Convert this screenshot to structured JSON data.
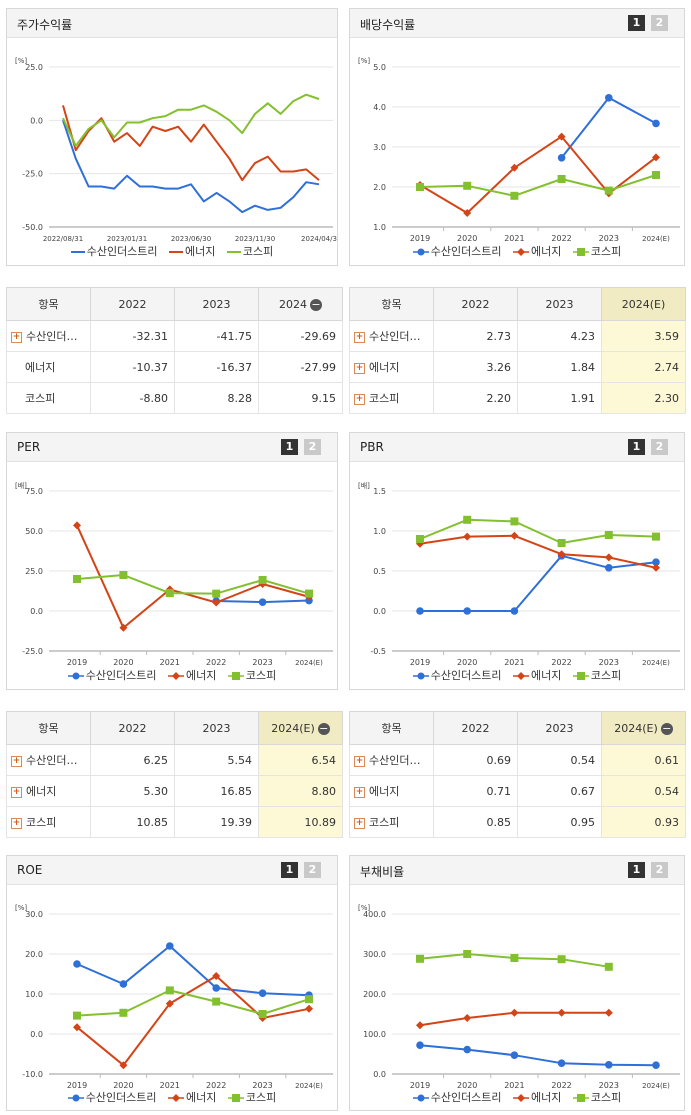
{
  "legend_names": [
    "수산인더스트리",
    "에너지",
    "코스피"
  ],
  "colors": {
    "s1": "#2f6fd8",
    "s2": "#d44417",
    "s3": "#83c02f"
  },
  "charts": [
    {
      "id": "stock",
      "title": "주가수익률",
      "unit": "[%]",
      "paging": [],
      "ticks": [
        "25.0",
        "0.0",
        "-25.0",
        "-50.0"
      ],
      "ymin": -50,
      "ymax": 25,
      "xlabels": [
        "2022/08/31",
        "2023/01/31",
        "2023/06/30",
        "2023/11/30",
        "2024/04/3"
      ],
      "x_count": 21,
      "x_at": [
        0,
        5,
        10,
        15,
        20
      ],
      "marker": "none",
      "series": [
        [
          0,
          -18,
          -31,
          -31,
          -32,
          -26,
          -31,
          -31,
          -32,
          -32,
          -30,
          -38,
          -34,
          -38,
          -43,
          -40,
          -42,
          -41,
          -36,
          -29,
          -30
        ],
        [
          7,
          -14,
          -5,
          1,
          -10,
          -6,
          -12,
          -3,
          -5,
          -3,
          -10,
          -2,
          -10,
          -18,
          -28,
          -20,
          -17,
          -24,
          -24,
          -23,
          -28
        ],
        [
          1,
          -12,
          -4,
          0,
          -8,
          -1,
          -1,
          1,
          2,
          5,
          5,
          7,
          4,
          0,
          -6,
          3,
          8,
          3,
          9,
          12,
          10
        ]
      ]
    },
    {
      "id": "dividend",
      "title": "배당수익률",
      "unit": "[%]",
      "paging": [
        "1",
        "2"
      ],
      "ticks": [
        "5.0",
        "4.0",
        "3.0",
        "2.0",
        "1.0"
      ],
      "ymin": 1,
      "ymax": 5,
      "xlabels": [
        "2019",
        "2020",
        "2021",
        "2022",
        "2023",
        "2024(E)"
      ],
      "x_count": 6,
      "x_at": [
        0,
        1,
        2,
        3,
        4,
        5
      ],
      "marker": "mixed",
      "series": [
        [
          null,
          null,
          null,
          2.73,
          4.23,
          3.59
        ],
        [
          2.05,
          1.35,
          2.48,
          3.26,
          1.84,
          2.74
        ],
        [
          2.0,
          2.03,
          1.78,
          2.2,
          1.91,
          2.3
        ]
      ]
    },
    {
      "id": "per",
      "title": "PER",
      "unit": "[배]",
      "paging": [
        "1",
        "2"
      ],
      "ticks": [
        "75.0",
        "50.0",
        "25.0",
        "0.0",
        "-25.0"
      ],
      "ymin": -25,
      "ymax": 75,
      "xlabels": [
        "2019",
        "2020",
        "2021",
        "2022",
        "2023",
        "2024(E)"
      ],
      "x_count": 6,
      "x_at": [
        0,
        1,
        2,
        3,
        4,
        5
      ],
      "marker": "mixed",
      "series": [
        [
          null,
          null,
          null,
          6.25,
          5.54,
          6.54
        ],
        [
          53.5,
          -10.5,
          13.5,
          5.3,
          16.85,
          8.8
        ],
        [
          20.0,
          22.5,
          11.2,
          10.85,
          19.39,
          10.89
        ]
      ]
    },
    {
      "id": "pbr",
      "title": "PBR",
      "unit": "[배]",
      "paging": [
        "1",
        "2"
      ],
      "ticks": [
        "1.5",
        "1.0",
        "0.5",
        "0.0",
        "-0.5"
      ],
      "ymin": -0.5,
      "ymax": 1.5,
      "xlabels": [
        "2019",
        "2020",
        "2021",
        "2022",
        "2023",
        "2024(E)"
      ],
      "x_count": 6,
      "x_at": [
        0,
        1,
        2,
        3,
        4,
        5
      ],
      "marker": "mixed",
      "series": [
        [
          0.0,
          0.0,
          0.0,
          0.69,
          0.54,
          0.61
        ],
        [
          0.84,
          0.93,
          0.94,
          0.71,
          0.67,
          0.54
        ],
        [
          0.9,
          1.14,
          1.12,
          0.85,
          0.95,
          0.93
        ]
      ]
    },
    {
      "id": "roe",
      "title": "ROE",
      "unit": "[%]",
      "paging": [
        "1",
        "2"
      ],
      "ticks": [
        "30.0",
        "20.0",
        "10.0",
        "0.0",
        "-10.0"
      ],
      "ymin": -10,
      "ymax": 30,
      "xlabels": [
        "2019",
        "2020",
        "2021",
        "2022",
        "2023",
        "2024(E)"
      ],
      "x_count": 6,
      "x_at": [
        0,
        1,
        2,
        3,
        4,
        5
      ],
      "marker": "mixed",
      "series": [
        [
          17.5,
          12.5,
          22.0,
          11.5,
          10.2,
          9.7
        ],
        [
          1.7,
          -7.8,
          7.6,
          14.5,
          4.0,
          6.3
        ],
        [
          4.6,
          5.3,
          10.9,
          8.1,
          5.0,
          8.7
        ]
      ]
    },
    {
      "id": "debt",
      "title": "부채비율",
      "unit": "[%]",
      "paging": [
        "1",
        "2"
      ],
      "ticks": [
        "400.0",
        "300.0",
        "200.0",
        "100.0",
        "0.0"
      ],
      "ymin": 0,
      "ymax": 400,
      "xlabels": [
        "2019",
        "2020",
        "2021",
        "2022",
        "2023",
        "2024(E)"
      ],
      "x_count": 6,
      "x_at": [
        0,
        1,
        2,
        3,
        4,
        5
      ],
      "marker": "mixed",
      "series": [
        [
          72,
          61,
          47,
          27,
          23,
          22
        ],
        [
          122,
          140,
          153,
          153,
          153,
          null
        ],
        [
          288,
          300,
          290,
          287,
          268,
          null
        ]
      ]
    }
  ],
  "tables": [
    {
      "id": "stock",
      "headers": [
        "항목",
        "2022",
        "2023",
        "2024"
      ],
      "has_minus": true,
      "rows": [
        {
          "name": "수산인더…",
          "plus": true,
          "values": [
            "-32.31",
            "-41.75",
            "-29.69"
          ]
        },
        {
          "name": "에너지",
          "plus": false,
          "values": [
            "-10.37",
            "-16.37",
            "-27.99"
          ]
        },
        {
          "name": "코스피",
          "plus": false,
          "values": [
            "-8.80",
            "8.28",
            "9.15"
          ]
        }
      ]
    },
    {
      "id": "dividend",
      "headers": [
        "항목",
        "2022",
        "2023",
        "2024(E)"
      ],
      "has_minus": false,
      "rows": [
        {
          "name": "수산인더…",
          "plus": true,
          "values": [
            "2.73",
            "4.23",
            "3.59"
          ]
        },
        {
          "name": "에너지",
          "plus": true,
          "values": [
            "3.26",
            "1.84",
            "2.74"
          ]
        },
        {
          "name": "코스피",
          "plus": true,
          "values": [
            "2.20",
            "1.91",
            "2.30"
          ]
        }
      ]
    },
    {
      "id": "per",
      "headers": [
        "항목",
        "2022",
        "2023",
        "2024(E)"
      ],
      "has_minus": true,
      "rows": [
        {
          "name": "수산인더…",
          "plus": true,
          "values": [
            "6.25",
            "5.54",
            "6.54"
          ]
        },
        {
          "name": "에너지",
          "plus": true,
          "values": [
            "5.30",
            "16.85",
            "8.80"
          ]
        },
        {
          "name": "코스피",
          "plus": true,
          "values": [
            "10.85",
            "19.39",
            "10.89"
          ]
        }
      ]
    },
    {
      "id": "pbr",
      "headers": [
        "항목",
        "2022",
        "2023",
        "2024(E)"
      ],
      "has_minus": true,
      "rows": [
        {
          "name": "수산인더…",
          "plus": true,
          "values": [
            "0.69",
            "0.54",
            "0.61"
          ]
        },
        {
          "name": "에너지",
          "plus": true,
          "values": [
            "0.71",
            "0.67",
            "0.54"
          ]
        },
        {
          "name": "코스피",
          "plus": true,
          "values": [
            "0.85",
            "0.95",
            "0.93"
          ]
        }
      ]
    }
  ]
}
